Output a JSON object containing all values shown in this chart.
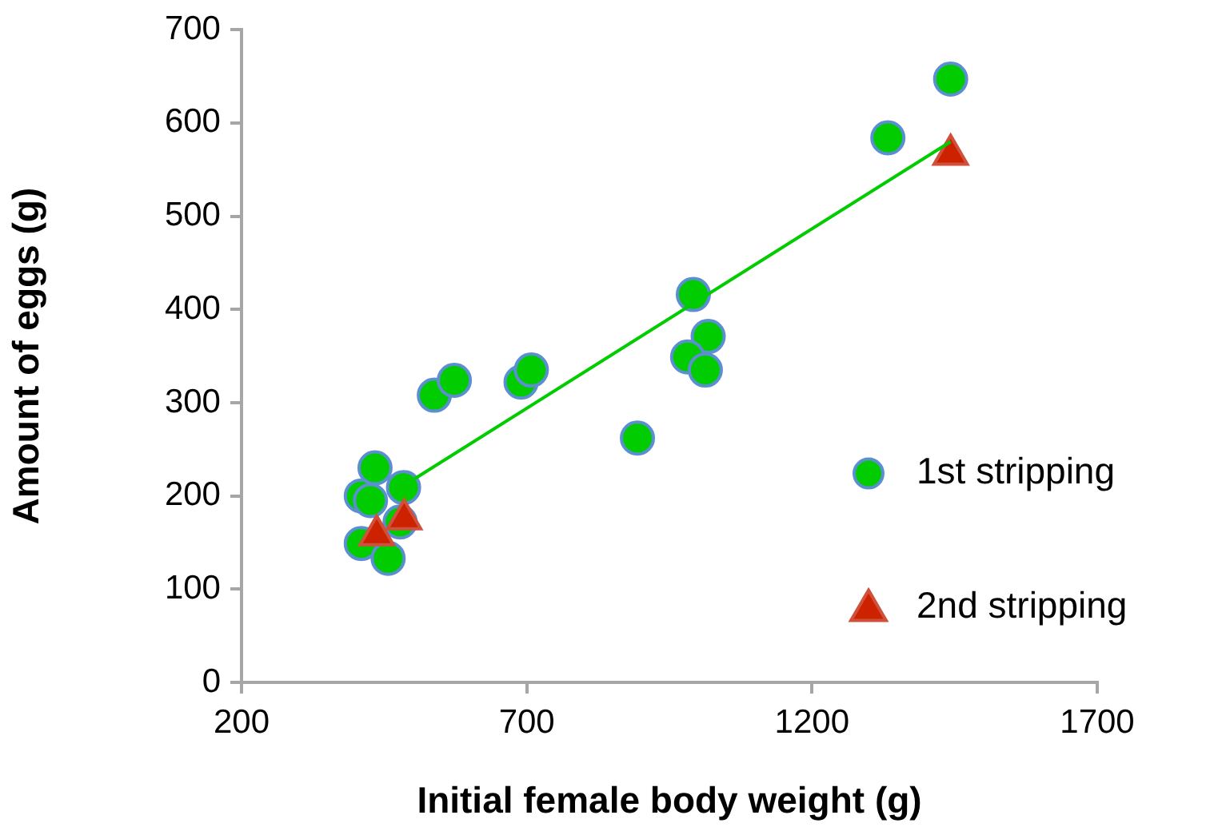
{
  "chart_data": {
    "type": "scatter",
    "xlabel": "Initial female body weight (g)",
    "ylabel": "Amount of eggs (g)",
    "xlim": [
      200,
      1700
    ],
    "xticks": [
      200,
      700,
      1200,
      1700
    ],
    "ylim": [
      0,
      700
    ],
    "yticks": [
      0,
      100,
      200,
      300,
      400,
      500,
      600,
      700
    ],
    "grid": false,
    "legend": "right",
    "series": [
      {
        "name": "1st stripping",
        "color": "#00cc00",
        "marker": "circle",
        "x": [
          410,
          426,
          434,
          484,
          410,
          457,
          478,
          538,
          573,
          690,
          708,
          894,
          992,
          1018,
          982,
          1013,
          1333,
          1443
        ],
        "values": [
          200,
          195,
          230,
          209,
          149,
          133,
          172,
          308,
          324,
          322,
          335,
          262,
          416,
          371,
          349,
          335,
          584,
          647
        ]
      },
      {
        "name": "2nd stripping",
        "color": "#cc2200",
        "marker": "triangle",
        "x": [
          437,
          485,
          1443
        ],
        "values": [
          158,
          175,
          566
        ]
      },
      {
        "type": "line",
        "color": "#00cc00",
        "marker": "none",
        "x": [
          500,
          1443
        ],
        "values": [
          217,
          580
        ]
      }
    ]
  }
}
